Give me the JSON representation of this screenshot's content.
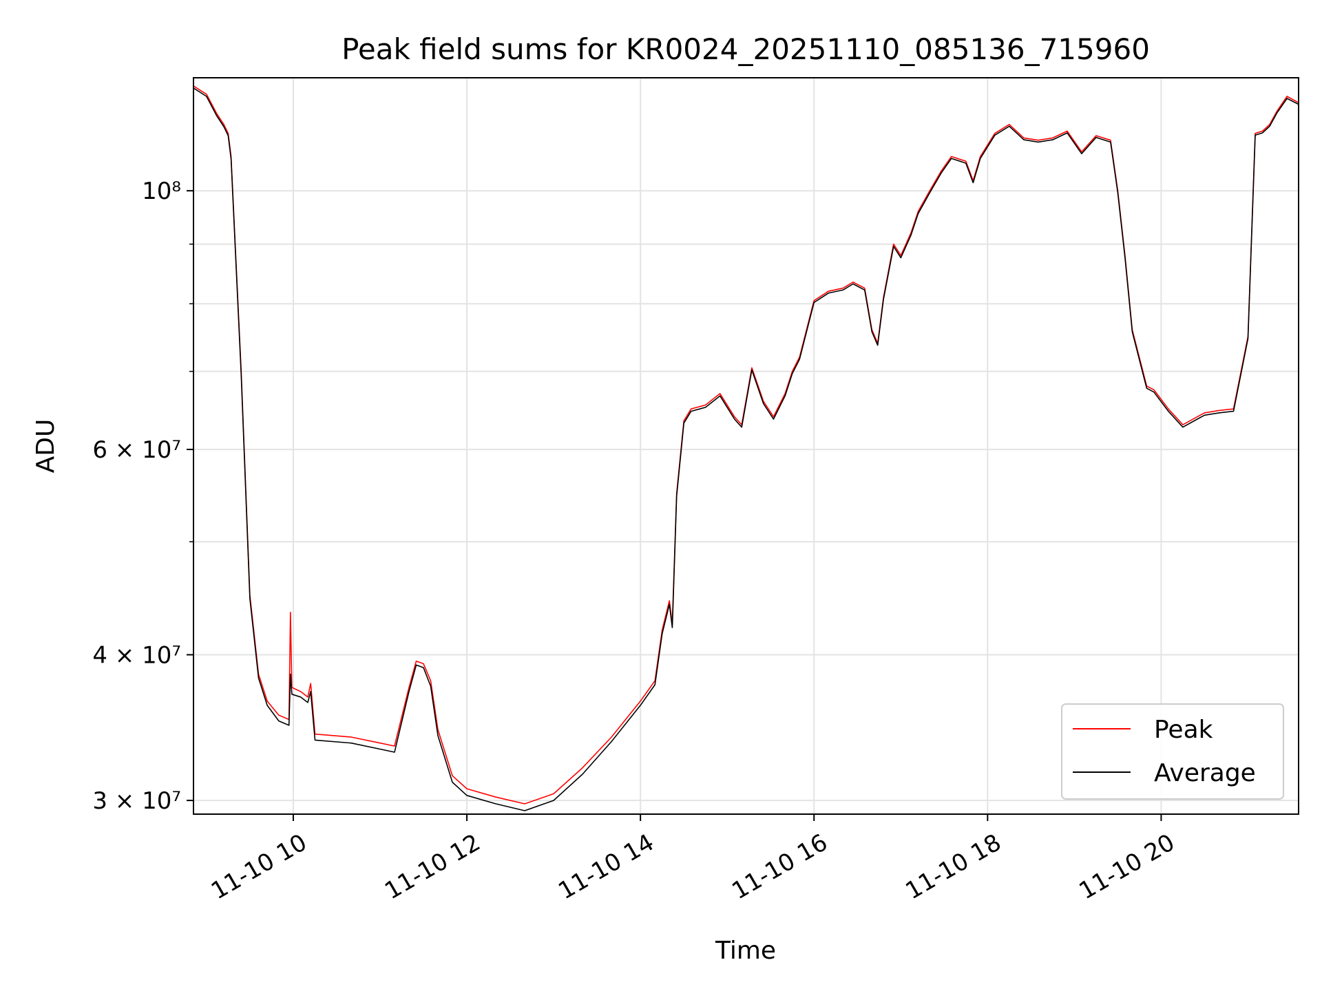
{
  "chart_data": {
    "type": "line",
    "title": "Peak field sums for KR0024_20251110_085136_715960",
    "xlabel": "Time",
    "ylabel": "ADU",
    "yscale": "log",
    "grid": true,
    "legend_position": "bottom-right",
    "xlim": [
      "2025-11-10 08:51",
      "2025-11-10 21:35"
    ],
    "ylim": [
      29200000,
      125000000
    ],
    "x_ticks": [
      {
        "at": "2025-11-10 10:00",
        "label": "11-10 10"
      },
      {
        "at": "2025-11-10 12:00",
        "label": "11-10 12"
      },
      {
        "at": "2025-11-10 14:00",
        "label": "11-10 14"
      },
      {
        "at": "2025-11-10 16:00",
        "label": "11-10 16"
      },
      {
        "at": "2025-11-10 18:00",
        "label": "11-10 18"
      },
      {
        "at": "2025-11-10 20:00",
        "label": "11-10 20"
      }
    ],
    "y_ticks_major": [
      {
        "value": 30000000,
        "label": "3 × 10⁷"
      },
      {
        "value": 40000000,
        "label": "4 × 10⁷"
      },
      {
        "value": 60000000,
        "label": "6 × 10⁷"
      },
      {
        "value": 100000000,
        "label": "10⁸"
      }
    ],
    "y_ticks_minor": [
      50000000,
      70000000,
      80000000,
      90000000
    ],
    "series": [
      {
        "name": "Peak",
        "color": "#ff0000",
        "x": [
          "2025-11-10 08:51",
          "2025-11-10 09:00",
          "2025-11-10 09:07",
          "2025-11-10 09:12",
          "2025-11-10 09:15",
          "2025-11-10 09:17",
          "2025-11-10 09:24",
          "2025-11-10 09:30",
          "2025-11-10 09:36",
          "2025-11-10 09:42",
          "2025-11-10 09:50",
          "2025-11-10 09:57",
          "2025-11-10 09:58",
          "2025-11-10 09:59",
          "2025-11-10 10:05",
          "2025-11-10 10:10",
          "2025-11-10 10:12",
          "2025-11-10 10:15",
          "2025-11-10 10:40",
          "2025-11-10 11:00",
          "2025-11-10 11:10",
          "2025-11-10 11:20",
          "2025-11-10 11:25",
          "2025-11-10 11:30",
          "2025-11-10 11:35",
          "2025-11-10 11:40",
          "2025-11-10 11:50",
          "2025-11-10 12:00",
          "2025-11-10 12:20",
          "2025-11-10 12:40",
          "2025-11-10 13:00",
          "2025-11-10 13:20",
          "2025-11-10 13:40",
          "2025-11-10 14:00",
          "2025-11-10 14:10",
          "2025-11-10 14:15",
          "2025-11-10 14:20",
          "2025-11-10 14:22",
          "2025-11-10 14:25",
          "2025-11-10 14:30",
          "2025-11-10 14:35",
          "2025-11-10 14:45",
          "2025-11-10 14:55",
          "2025-11-10 15:05",
          "2025-11-10 15:10",
          "2025-11-10 15:17",
          "2025-11-10 15:25",
          "2025-11-10 15:32",
          "2025-11-10 15:40",
          "2025-11-10 15:45",
          "2025-11-10 15:50",
          "2025-11-10 16:00",
          "2025-11-10 16:10",
          "2025-11-10 16:20",
          "2025-11-10 16:27",
          "2025-11-10 16:35",
          "2025-11-10 16:40",
          "2025-11-10 16:44",
          "2025-11-10 16:48",
          "2025-11-10 16:55",
          "2025-11-10 17:00",
          "2025-11-10 17:07",
          "2025-11-10 17:12",
          "2025-11-10 17:20",
          "2025-11-10 17:28",
          "2025-11-10 17:35",
          "2025-11-10 17:45",
          "2025-11-10 17:50",
          "2025-11-10 17:55",
          "2025-11-10 18:05",
          "2025-11-10 18:15",
          "2025-11-10 18:25",
          "2025-11-10 18:35",
          "2025-11-10 18:45",
          "2025-11-10 18:55",
          "2025-11-10 19:05",
          "2025-11-10 19:15",
          "2025-11-10 19:25",
          "2025-11-10 19:30",
          "2025-11-10 19:35",
          "2025-11-10 19:40",
          "2025-11-10 19:50",
          "2025-11-10 19:55",
          "2025-11-10 20:05",
          "2025-11-10 20:15",
          "2025-11-10 20:25",
          "2025-11-10 20:30",
          "2025-11-10 20:40",
          "2025-11-10 20:50",
          "2025-11-10 21:00",
          "2025-11-10 21:05",
          "2025-11-10 21:10",
          "2025-11-10 21:15",
          "2025-11-10 21:20",
          "2025-11-10 21:27",
          "2025-11-10 21:35"
        ],
        "y": [
          123000000,
          121000000,
          116500000,
          114000000,
          112000000,
          107000000,
          70000000,
          45000000,
          38500000,
          36500000,
          35500000,
          35200000,
          43500000,
          37500000,
          37200000,
          36800000,
          37800000,
          34200000,
          34000000,
          33600000,
          33400000,
          37500000,
          39500000,
          39300000,
          38000000,
          34500000,
          31500000,
          30700000,
          30200000,
          29800000,
          30400000,
          32000000,
          34000000,
          36500000,
          38000000,
          42000000,
          44500000,
          42500000,
          55000000,
          63500000,
          65000000,
          65500000,
          67000000,
          64000000,
          63000000,
          70500000,
          66000000,
          64000000,
          67000000,
          70000000,
          72000000,
          80500000,
          82000000,
          82500000,
          83500000,
          82500000,
          76000000,
          74000000,
          81000000,
          90000000,
          88000000,
          92000000,
          96000000,
          100000000,
          104000000,
          107000000,
          106000000,
          102000000,
          107000000,
          112000000,
          114000000,
          111000000,
          110500000,
          111000000,
          112500000,
          108000000,
          111500000,
          110500000,
          100000000,
          88000000,
          76000000,
          68000000,
          67500000,
          65000000,
          63000000,
          64000000,
          64500000,
          64800000,
          65000000,
          75000000,
          112000000,
          112500000,
          114000000,
          117000000,
          120500000,
          119000000
        ]
      },
      {
        "name": "Average",
        "color": "#000000",
        "x": [
          "2025-11-10 08:51",
          "2025-11-10 09:00",
          "2025-11-10 09:07",
          "2025-11-10 09:12",
          "2025-11-10 09:15",
          "2025-11-10 09:17",
          "2025-11-10 09:24",
          "2025-11-10 09:30",
          "2025-11-10 09:36",
          "2025-11-10 09:42",
          "2025-11-10 09:50",
          "2025-11-10 09:57",
          "2025-11-10 09:58",
          "2025-11-10 09:59",
          "2025-11-10 10:05",
          "2025-11-10 10:10",
          "2025-11-10 10:12",
          "2025-11-10 10:15",
          "2025-11-10 10:40",
          "2025-11-10 11:00",
          "2025-11-10 11:10",
          "2025-11-10 11:20",
          "2025-11-10 11:25",
          "2025-11-10 11:30",
          "2025-11-10 11:35",
          "2025-11-10 11:40",
          "2025-11-10 11:50",
          "2025-11-10 12:00",
          "2025-11-10 12:20",
          "2025-11-10 12:40",
          "2025-11-10 13:00",
          "2025-11-10 13:20",
          "2025-11-10 13:40",
          "2025-11-10 14:00",
          "2025-11-10 14:10",
          "2025-11-10 14:15",
          "2025-11-10 14:20",
          "2025-11-10 14:22",
          "2025-11-10 14:25",
          "2025-11-10 14:30",
          "2025-11-10 14:35",
          "2025-11-10 14:45",
          "2025-11-10 14:55",
          "2025-11-10 15:05",
          "2025-11-10 15:10",
          "2025-11-10 15:17",
          "2025-11-10 15:25",
          "2025-11-10 15:32",
          "2025-11-10 15:40",
          "2025-11-10 15:45",
          "2025-11-10 15:50",
          "2025-11-10 16:00",
          "2025-11-10 16:10",
          "2025-11-10 16:20",
          "2025-11-10 16:27",
          "2025-11-10 16:35",
          "2025-11-10 16:40",
          "2025-11-10 16:44",
          "2025-11-10 16:48",
          "2025-11-10 16:55",
          "2025-11-10 17:00",
          "2025-11-10 17:07",
          "2025-11-10 17:12",
          "2025-11-10 17:20",
          "2025-11-10 17:28",
          "2025-11-10 17:35",
          "2025-11-10 17:45",
          "2025-11-10 17:50",
          "2025-11-10 17:55",
          "2025-11-10 18:05",
          "2025-11-10 18:15",
          "2025-11-10 18:25",
          "2025-11-10 18:35",
          "2025-11-10 18:45",
          "2025-11-10 18:55",
          "2025-11-10 19:05",
          "2025-11-10 19:15",
          "2025-11-10 19:25",
          "2025-11-10 19:30",
          "2025-11-10 19:35",
          "2025-11-10 19:40",
          "2025-11-10 19:50",
          "2025-11-10 19:55",
          "2025-11-10 20:05",
          "2025-11-10 20:15",
          "2025-11-10 20:25",
          "2025-11-10 20:30",
          "2025-11-10 20:40",
          "2025-11-10 20:50",
          "2025-11-10 21:00",
          "2025-11-10 21:05",
          "2025-11-10 21:10",
          "2025-11-10 21:15",
          "2025-11-10 21:20",
          "2025-11-10 21:27",
          "2025-11-10 21:35"
        ],
        "y": [
          122500000,
          120500000,
          116000000,
          113500000,
          111500000,
          106500000,
          69500000,
          44700000,
          38200000,
          36200000,
          35100000,
          34800000,
          38500000,
          37000000,
          36800000,
          36400000,
          37200000,
          33800000,
          33600000,
          33200000,
          33000000,
          37200000,
          39200000,
          39000000,
          37600000,
          34100000,
          31100000,
          30300000,
          29800000,
          29400000,
          30000000,
          31600000,
          33700000,
          36200000,
          37700000,
          41700000,
          44200000,
          42200000,
          54700000,
          63200000,
          64700000,
          65200000,
          66700000,
          63700000,
          62700000,
          70200000,
          65700000,
          63700000,
          66700000,
          69700000,
          71700000,
          80200000,
          81700000,
          82200000,
          83200000,
          82200000,
          75700000,
          73700000,
          80700000,
          89600000,
          87600000,
          91600000,
          95600000,
          99600000,
          103600000,
          106600000,
          105600000,
          101600000,
          106600000,
          111600000,
          113600000,
          110600000,
          110100000,
          110600000,
          112100000,
          107600000,
          111100000,
          110100000,
          99600000,
          87600000,
          75700000,
          67700000,
          67200000,
          64700000,
          62700000,
          63700000,
          64200000,
          64500000,
          64700000,
          74700000,
          111600000,
          112100000,
          113600000,
          116600000,
          120000000,
          118600000
        ]
      }
    ]
  }
}
